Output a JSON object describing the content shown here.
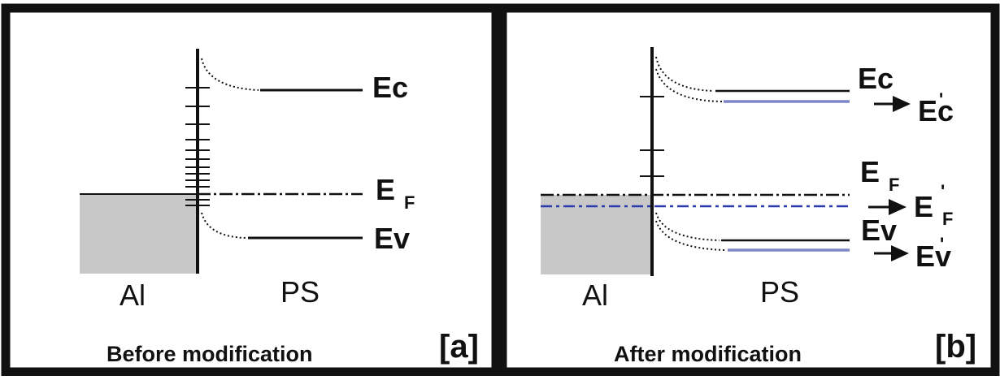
{
  "panel_a": {
    "caption": "Before modification",
    "tag": "[a]",
    "metal_label": "Al",
    "semiconductor_label": "PS",
    "ec_label": "Ec",
    "ef_label": "E",
    "ef_sub": "F",
    "ev_label": "Ev"
  },
  "panel_b": {
    "caption": "After modification",
    "tag": "[b]",
    "metal_label": "Al",
    "semiconductor_label": "PS",
    "ec_label": "Ec",
    "ec_prime_label": "Ec",
    "ec_prime_mark": "'",
    "ef_label": "E",
    "ef_sub": "F",
    "ef_prime_label": "E",
    "ef_prime_sub": "F",
    "ef_prime_mark": "'",
    "ev_label": "Ev",
    "ev_prime_label": "Ev",
    "ev_prime_mark": "'"
  },
  "colors": {
    "border": "#111111",
    "metal_fill": "#c8c8c8",
    "shifted_level": "#7d86c8",
    "shifted_fermi": "#2a3bb0"
  }
}
